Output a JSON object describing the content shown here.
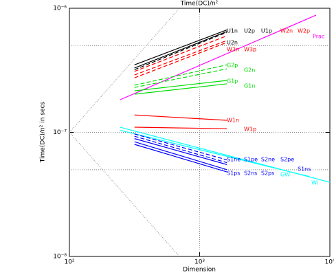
{
  "chart_data": {
    "type": "line",
    "title": "Time(DC)/n²",
    "xlabel": "Dimension",
    "ylabel": "Time(DC)/n² in secs",
    "xscale": "log",
    "yscale": "log",
    "xlim": [
      100,
      10000
    ],
    "ylim": [
      1e-08,
      1e-06
    ],
    "xticks": [
      {
        "value": 100,
        "label": "10²"
      },
      {
        "value": 1000,
        "label": "10³"
      },
      {
        "value": 10000,
        "label": "10⁴"
      }
    ],
    "yticks": [
      {
        "value": 1e-08,
        "label": "10⁻⁸"
      },
      {
        "value": 1e-07,
        "label": "10⁻⁷"
      },
      {
        "value": 1e-06,
        "label": "10⁻⁶"
      }
    ],
    "xgrid": [
      1000
    ],
    "ygrid": [
      5e-07,
      1e-07,
      5e-08
    ],
    "series": [
      {
        "color": "#888888",
        "linestyle": "dotted",
        "x": [
          100,
          700
        ],
        "values": [
          1e-07,
          1e-06
        ]
      },
      {
        "color": "#888888",
        "linestyle": "dotted",
        "x": [
          100,
          700
        ],
        "values": [
          1e-07,
          1e-08
        ]
      },
      {
        "color": "#000000",
        "linestyle": "solid",
        "x": [
          316,
          1620
        ],
        "values": [
          3.5e-07,
          6.7e-07
        ]
      },
      {
        "color": "#000000",
        "linestyle": "solid",
        "x": [
          316,
          1620
        ],
        "values": [
          3.3e-07,
          6.5e-07
        ]
      },
      {
        "color": "#000000",
        "linestyle": "dashed",
        "x": [
          316,
          1620
        ],
        "values": [
          3.2e-07,
          6.4e-07
        ]
      },
      {
        "color": "#ff0000",
        "linestyle": "dashed",
        "x": [
          316,
          1620
        ],
        "values": [
          3.1e-07,
          6e-07
        ]
      },
      {
        "color": "#ff0000",
        "linestyle": "dashed",
        "x": [
          316,
          1620
        ],
        "values": [
          2.9e-07,
          5.5e-07
        ]
      },
      {
        "color": "#ff0000",
        "linestyle": "dashed",
        "x": [
          316,
          1620
        ],
        "values": [
          2.75e-07,
          5.3e-07
        ]
      },
      {
        "color": "#ff00ff",
        "linestyle": "solid",
        "x": [
          245,
          7830
        ],
        "values": [
          1.83e-07,
          8.8e-07
        ]
      },
      {
        "color": "#00dd00",
        "linestyle": "dashed",
        "x": [
          316,
          1620
        ],
        "values": [
          2.4e-07,
          3.5e-07
        ]
      },
      {
        "color": "#00dd00",
        "linestyle": "dashed",
        "x": [
          316,
          1620
        ],
        "values": [
          2.3e-07,
          3.25e-07
        ]
      },
      {
        "color": "#00dd00",
        "linestyle": "solid",
        "x": [
          316,
          1620
        ],
        "values": [
          2.16e-07,
          2.62e-07
        ]
      },
      {
        "color": "#00dd00",
        "linestyle": "solid",
        "x": [
          316,
          1620
        ],
        "values": [
          2.03e-07,
          2.46e-07
        ]
      },
      {
        "color": "#ff0000",
        "linestyle": "solid",
        "x": [
          316,
          1620
        ],
        "values": [
          1.38e-07,
          1.25e-07
        ]
      },
      {
        "color": "#ff0000",
        "linestyle": "solid",
        "x": [
          316,
          1620
        ],
        "values": [
          1.1e-07,
          1.07e-07
        ]
      },
      {
        "color": "#00ffff",
        "linestyle": "solid",
        "x": [
          245,
          10000
        ],
        "values": [
          1.1e-07,
          3.96e-08
        ]
      },
      {
        "color": "#00ffff",
        "linestyle": "solid",
        "x": [
          245,
          7000
        ],
        "values": [
          1.04e-07,
          4.4e-08
        ]
      },
      {
        "color": "#0000ff",
        "linestyle": "dashed",
        "x": [
          316,
          1620
        ],
        "values": [
          9.7e-08,
          6e-08
        ]
      },
      {
        "color": "#0000ff",
        "linestyle": "dashed",
        "x": [
          316,
          1620
        ],
        "values": [
          9.3e-08,
          5.7e-08
        ]
      },
      {
        "color": "#0000ff",
        "linestyle": "solid",
        "x": [
          316,
          1620
        ],
        "values": [
          8.9e-08,
          5.5e-08
        ]
      },
      {
        "color": "#0000ff",
        "linestyle": "solid",
        "x": [
          316,
          1620
        ],
        "values": [
          8.4e-08,
          5e-08
        ]
      },
      {
        "color": "#0000ff",
        "linestyle": "solid",
        "x": [
          316,
          1620
        ],
        "values": [
          8e-08,
          4.8e-08
        ]
      }
    ],
    "annotations": [
      {
        "text": "U1n",
        "x": 1616,
        "y": 6.56e-07,
        "color": "#000000"
      },
      {
        "text": "U2p",
        "x": 2188,
        "y": 6.56e-07,
        "color": "#000000"
      },
      {
        "text": "U1p",
        "x": 2963,
        "y": 6.56e-07,
        "color": "#000000"
      },
      {
        "text": "W2n",
        "x": 4168,
        "y": 6.56e-07,
        "color": "#ff0000"
      },
      {
        "text": "W2p",
        "x": 5650,
        "y": 6.56e-07,
        "color": "#ff0000"
      },
      {
        "text": "Prac",
        "x": 7385,
        "y": 5.93e-07,
        "color": "#ff00ff"
      },
      {
        "text": "U2n",
        "x": 1616,
        "y": 5.29e-07,
        "color": "#000000"
      },
      {
        "text": "W3n",
        "x": 1616,
        "y": 4.65e-07,
        "color": "#ff0000"
      },
      {
        "text": "W3p",
        "x": 2188,
        "y": 4.65e-07,
        "color": "#ff0000"
      },
      {
        "text": "G2p",
        "x": 1616,
        "y": 3.47e-07,
        "color": "#00dd00"
      },
      {
        "text": "G2n",
        "x": 2188,
        "y": 3.17e-07,
        "color": "#00dd00"
      },
      {
        "text": "G1p",
        "x": 1616,
        "y": 2.59e-07,
        "color": "#00dd00"
      },
      {
        "text": "G1n",
        "x": 2188,
        "y": 2.37e-07,
        "color": "#00dd00"
      },
      {
        "text": "W1n",
        "x": 1616,
        "y": 1.25e-07,
        "color": "#ff0000"
      },
      {
        "text": "W1p",
        "x": 2188,
        "y": 1.06e-07,
        "color": "#ff0000"
      },
      {
        "text": "S1ne",
        "x": 1616,
        "y": 6.04e-08,
        "color": "#0000ff"
      },
      {
        "text": "S1pe",
        "x": 2188,
        "y": 6.04e-08,
        "color": "#0000ff"
      },
      {
        "text": "S2ne",
        "x": 2963,
        "y": 6.04e-08,
        "color": "#0000ff"
      },
      {
        "text": "S2pe",
        "x": 4168,
        "y": 6.04e-08,
        "color": "#0000ff"
      },
      {
        "text": "S1ns",
        "x": 5650,
        "y": 5.06e-08,
        "color": "#0000ff"
      },
      {
        "text": "S1ps",
        "x": 1616,
        "y": 4.68e-08,
        "color": "#0000ff"
      },
      {
        "text": "S2ns",
        "x": 2188,
        "y": 4.68e-08,
        "color": "#0000ff"
      },
      {
        "text": "S2ps",
        "x": 2963,
        "y": 4.68e-08,
        "color": "#0000ff"
      },
      {
        "text": "GW",
        "x": 4168,
        "y": 4.56e-08,
        "color": "#00ffff"
      },
      {
        "text": "Wi",
        "x": 7210,
        "y": 3.92e-08,
        "color": "#00ffff"
      }
    ]
  }
}
